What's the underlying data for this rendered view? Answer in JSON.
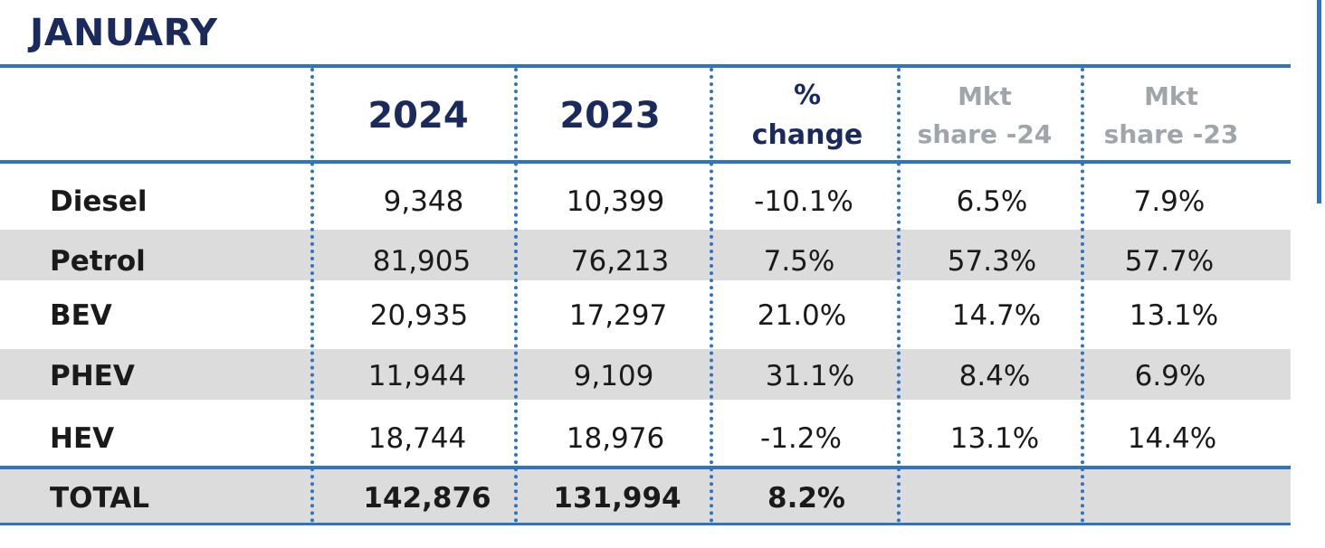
{
  "title": "JANUARY",
  "columns": {
    "y2024": "2024",
    "y2023": "2023",
    "change_line1": "%",
    "change_line2": "change",
    "share24_line1": "Mkt",
    "share24_line2": "share -24",
    "share23_line1": "Mkt",
    "share23_line2": "share -23"
  },
  "rows": [
    {
      "label": "Diesel",
      "y2024": "9,348",
      "y2023": "10,399",
      "change": "-10.1%",
      "share24": "6.5%",
      "share23": "7.9%"
    },
    {
      "label": "Petrol",
      "y2024": "81,905",
      "y2023": "76,213",
      "change": "7.5%",
      "share24": "57.3%",
      "share23": "57.7%"
    },
    {
      "label": "BEV",
      "y2024": "20,935",
      "y2023": "17,297",
      "change": "21.0%",
      "share24": "14.7%",
      "share23": "13.1%"
    },
    {
      "label": "PHEV",
      "y2024": "11,944",
      "y2023": "9,109",
      "change": "31.1%",
      "share24": "8.4%",
      "share23": "6.9%"
    },
    {
      "label": "HEV",
      "y2024": "18,744",
      "y2023": "18,976",
      "change": "-1.2%",
      "share24": "13.1%",
      "share23": "14.4%"
    }
  ],
  "total": {
    "label": "TOTAL",
    "y2024": "142,876",
    "y2023": "131,994",
    "change": "8.2%",
    "share24": "",
    "share23": ""
  },
  "colors": {
    "accent": "#2e73c4",
    "title": "#1b2a5c",
    "shade": "#dcdcdc",
    "muted_header": "#a0a4ab"
  }
}
